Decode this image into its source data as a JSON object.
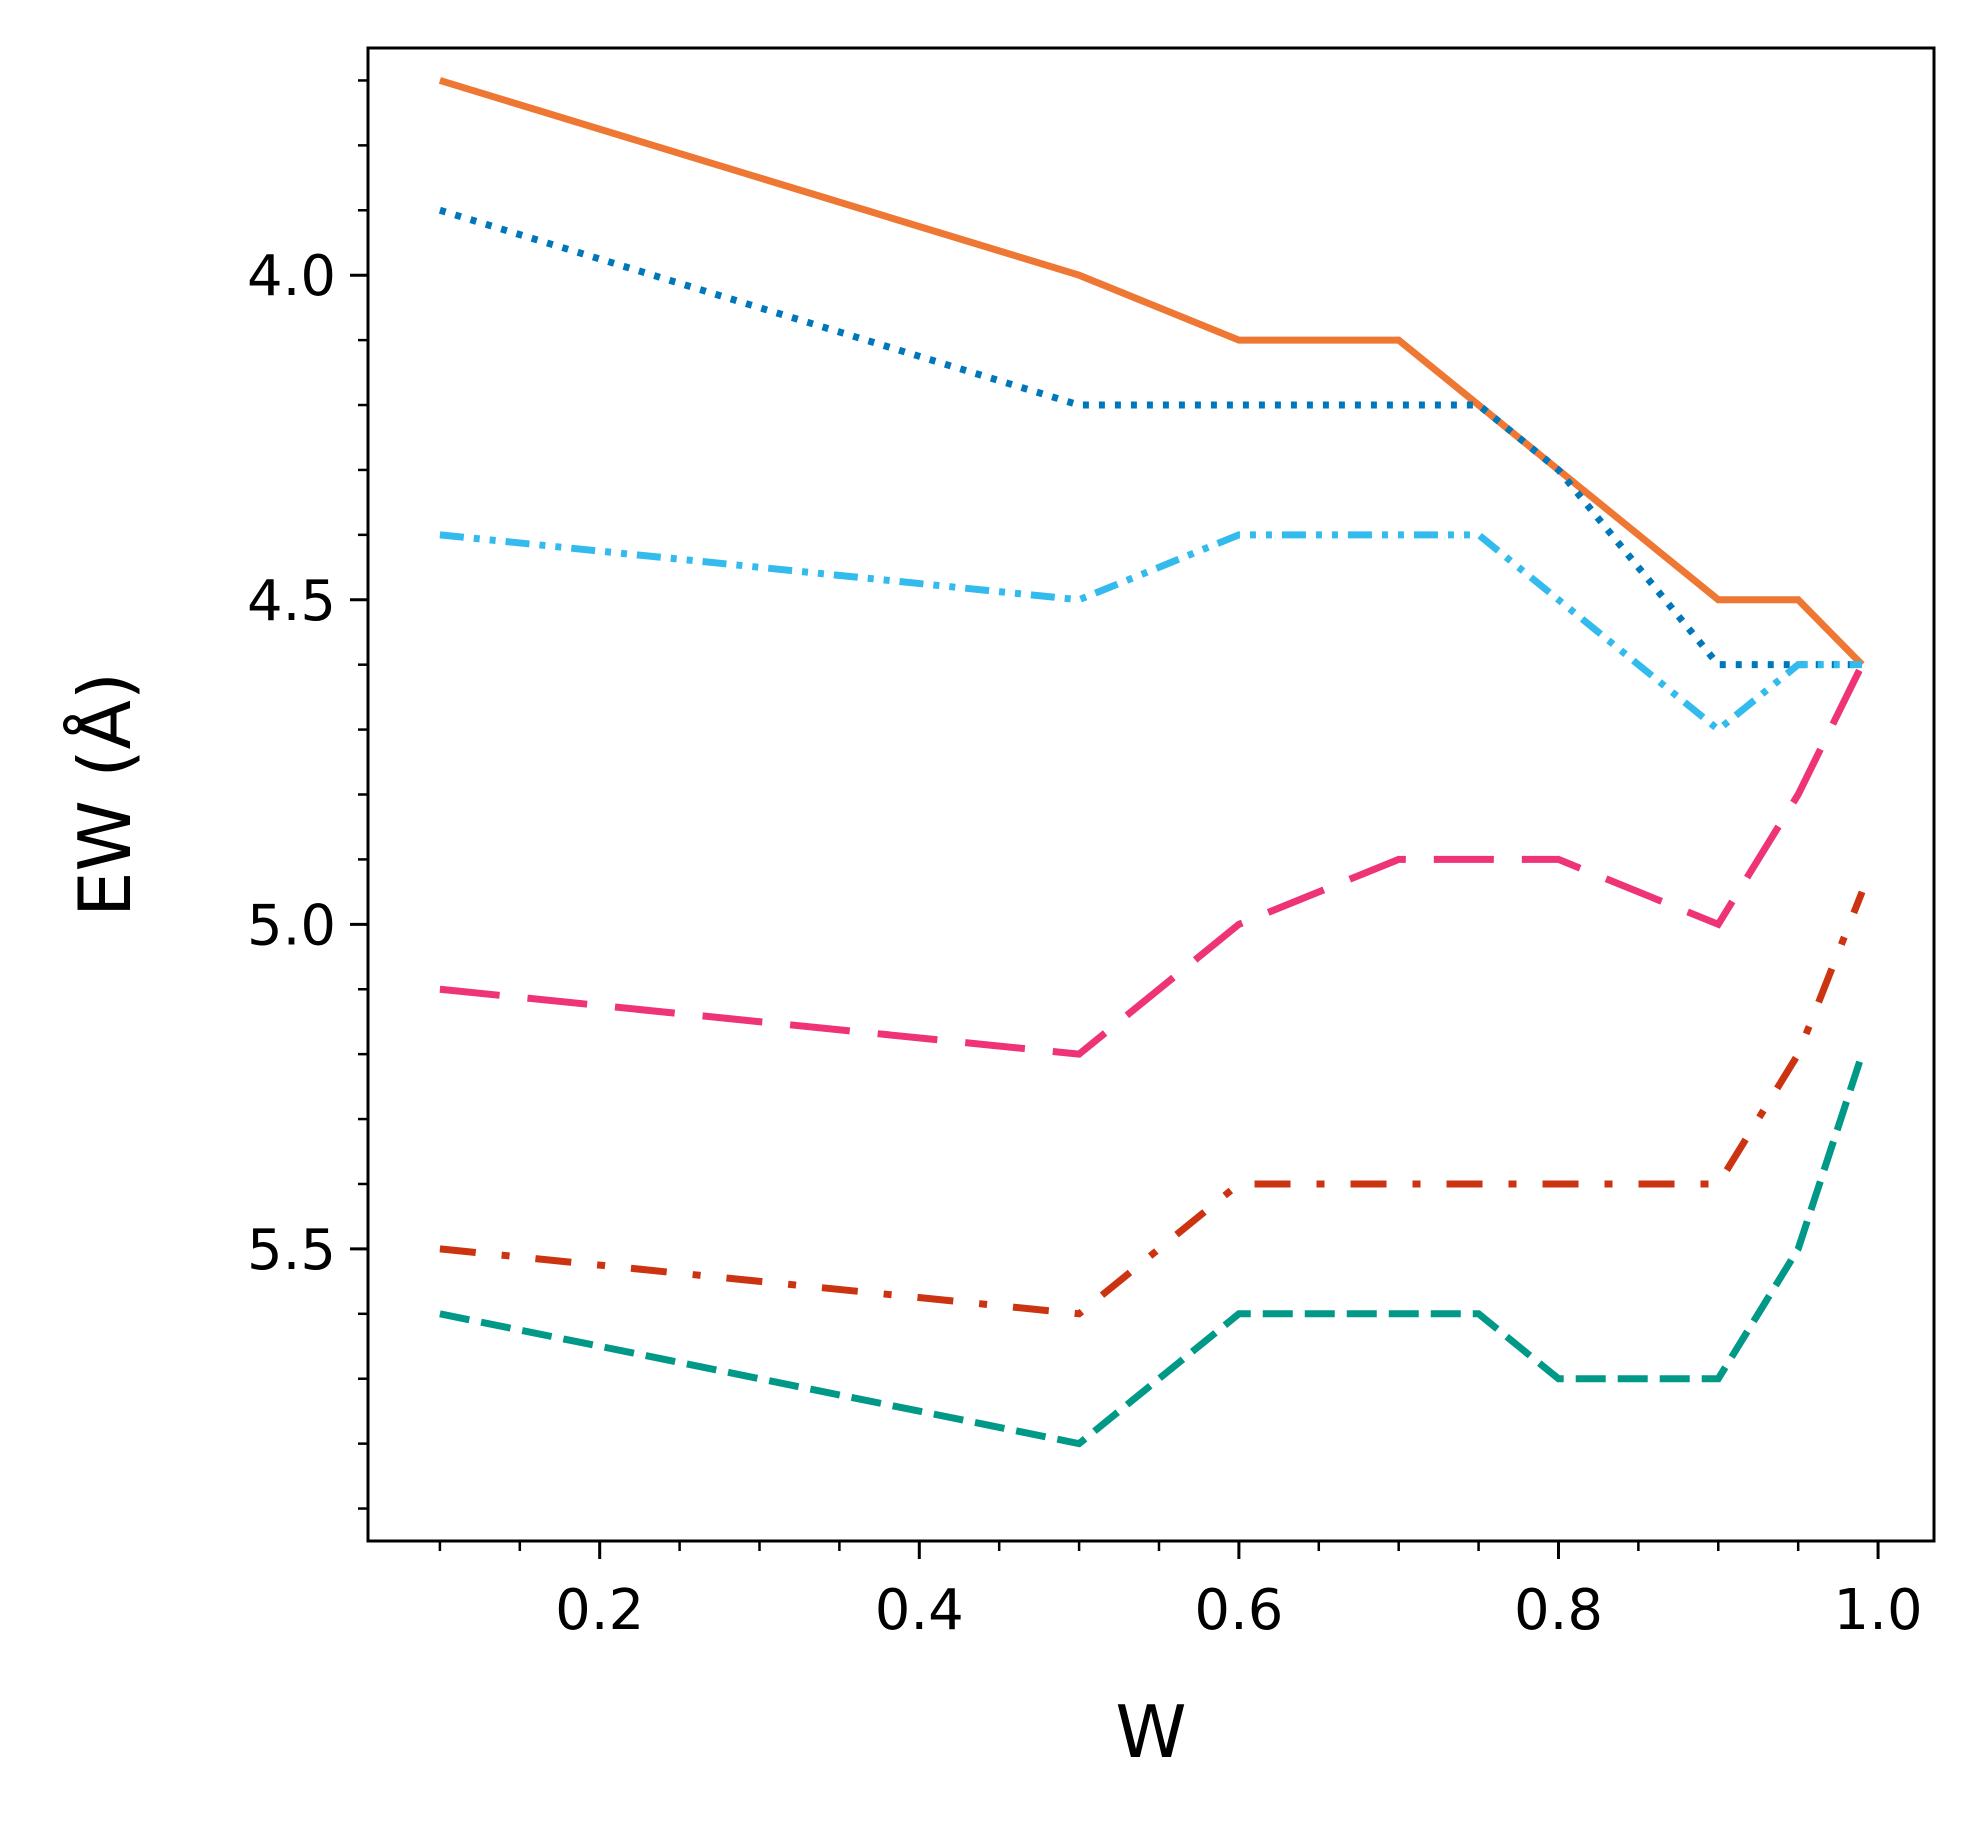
{
  "chart_data": {
    "type": "line",
    "xlabel": "W",
    "ylabel": "EW (Å)",
    "xlim": [
      0.055,
      1.035
    ],
    "ylim": [
      5.95,
      3.65
    ],
    "y_inverted": true,
    "grid": false,
    "legend": "none",
    "xticks": [
      0.2,
      0.4,
      0.6,
      0.8,
      1.0
    ],
    "xtick_labels": [
      "0.2",
      "0.4",
      "0.6",
      "0.8",
      "1.0"
    ],
    "yticks": [
      4.0,
      4.5,
      5.0,
      5.5
    ],
    "ytick_labels": [
      "4.0",
      "4.5",
      "5.0",
      "5.5"
    ],
    "x_minor_step": 0.05,
    "y_minor_step": 0.1,
    "series": [
      {
        "color": "#EE7733",
        "style": "solid",
        "x": [
          0.1,
          0.5,
          0.6,
          0.7,
          0.75,
          0.8,
          0.9,
          0.95,
          0.99
        ],
        "y": [
          3.7,
          4.0,
          4.1,
          4.1,
          4.2,
          4.3,
          4.5,
          4.5,
          4.6
        ]
      },
      {
        "color": "#0077BB",
        "style": "dotted",
        "x": [
          0.1,
          0.5,
          0.6,
          0.7,
          0.75,
          0.8,
          0.9,
          0.95,
          0.99
        ],
        "y": [
          3.9,
          4.2,
          4.2,
          4.2,
          4.2,
          4.3,
          4.6,
          4.6,
          4.6
        ]
      },
      {
        "color": "#33BBEE",
        "style": "dashdotdot",
        "x": [
          0.1,
          0.5,
          0.6,
          0.7,
          0.75,
          0.8,
          0.9,
          0.95,
          0.99
        ],
        "y": [
          4.4,
          4.5,
          4.4,
          4.4,
          4.4,
          4.5,
          4.7,
          4.6,
          4.6
        ]
      },
      {
        "color": "#EE3377",
        "style": "longdash",
        "x": [
          0.1,
          0.5,
          0.6,
          0.7,
          0.75,
          0.8,
          0.9,
          0.95,
          0.99
        ],
        "y": [
          5.1,
          5.2,
          5.0,
          4.9,
          4.9,
          4.9,
          5.0,
          4.8,
          4.6
        ]
      },
      {
        "color": "#CC3311",
        "style": "dashdot",
        "x": [
          0.1,
          0.5,
          0.6,
          0.7,
          0.75,
          0.8,
          0.9,
          0.95,
          0.99
        ],
        "y": [
          5.5,
          5.6,
          5.4,
          5.4,
          5.4,
          5.4,
          5.4,
          5.2,
          4.95
        ]
      },
      {
        "color": "#009988",
        "style": "dashed",
        "x": [
          0.1,
          0.5,
          0.6,
          0.7,
          0.75,
          0.8,
          0.9,
          0.95,
          0.99
        ],
        "y": [
          5.6,
          5.8,
          5.6,
          5.6,
          5.6,
          5.7,
          5.7,
          5.5,
          5.2
        ]
      }
    ]
  }
}
